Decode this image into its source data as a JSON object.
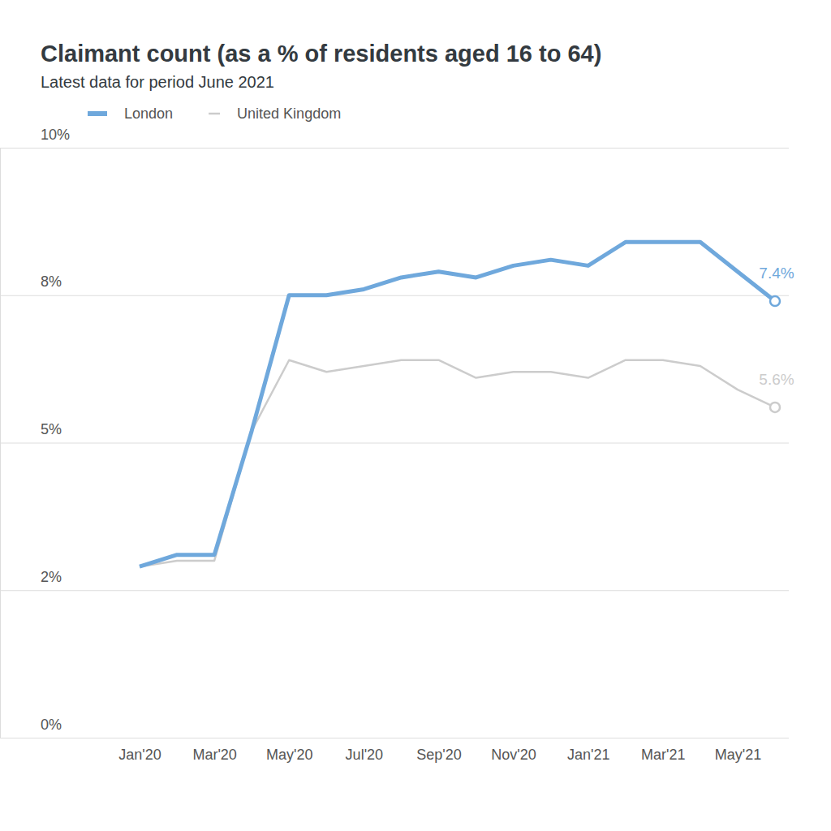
{
  "chart_data": {
    "type": "line",
    "title": "Claimant count (as a % of residents aged 16 to 64)",
    "subtitle": "Latest data for period June 2021",
    "categories": [
      "Jan'20",
      null,
      "Mar'20",
      null,
      "May'20",
      null,
      "Jul'20",
      null,
      "Sep'20",
      null,
      "Nov'20",
      null,
      "Jan'21",
      null,
      "Mar'21",
      null,
      "May'21",
      null
    ],
    "series": [
      {
        "name": "London",
        "color": "#6fa8dc",
        "values": [
          2.9,
          3.1,
          3.1,
          5.2,
          7.5,
          7.5,
          7.6,
          7.8,
          7.9,
          7.8,
          8.0,
          8.1,
          8.0,
          8.4,
          8.4,
          8.4,
          7.9,
          7.4
        ],
        "value_labels": [
          null,
          null,
          null,
          null,
          null,
          null,
          null,
          null,
          null,
          null,
          null,
          null,
          null,
          null,
          null,
          null,
          null,
          "7.4%"
        ]
      },
      {
        "name": "United Kingdom",
        "color": "#cccccc",
        "values": [
          2.9,
          3.0,
          3.0,
          5.2,
          6.4,
          6.2,
          6.3,
          6.4,
          6.4,
          6.1,
          6.2,
          6.2,
          6.1,
          6.4,
          6.4,
          6.3,
          5.9,
          5.6
        ],
        "value_labels": [
          null,
          null,
          null,
          null,
          null,
          null,
          null,
          null,
          null,
          null,
          null,
          null,
          null,
          null,
          null,
          null,
          null,
          "5.6%"
        ]
      }
    ],
    "ylim": [
      0,
      10
    ],
    "yticks": [
      {
        "value": 0,
        "label": "0%"
      },
      {
        "value": 2.5,
        "label": "2%"
      },
      {
        "value": 5,
        "label": "5%"
      },
      {
        "value": 7.5,
        "label": "8%"
      },
      {
        "value": 10,
        "label": "10%"
      }
    ],
    "grid": true,
    "legend": "top-left"
  }
}
